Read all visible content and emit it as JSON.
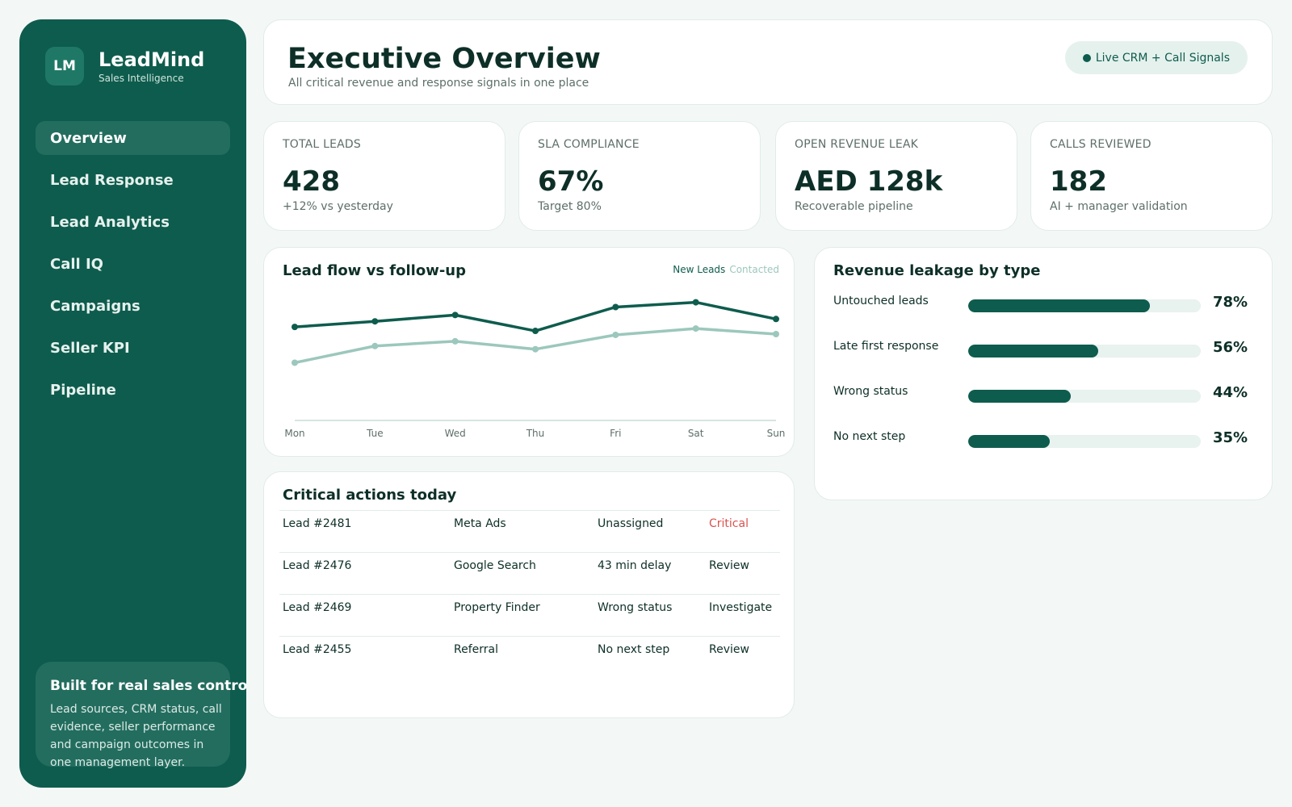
{
  "brand": {
    "logo": "LM",
    "name": "LeadMind",
    "subtitle": "Sales Intelligence"
  },
  "nav": [
    {
      "label": "Overview",
      "active": true
    },
    {
      "label": "Lead Response"
    },
    {
      "label": "Lead Analytics"
    },
    {
      "label": "Call IQ"
    },
    {
      "label": "Campaigns"
    },
    {
      "label": "Seller KPI"
    },
    {
      "label": "Pipeline"
    }
  ],
  "side_card": {
    "title": "Built for real sales control",
    "body": "Lead sources, CRM status, call evidence, seller performance and campaign outcomes in one management layer."
  },
  "header": {
    "title": "Executive Overview",
    "subtitle": "All critical revenue and response signals in one place",
    "live_label": "Live CRM + Call Signals"
  },
  "kpis": [
    {
      "label": "TOTAL LEADS",
      "value": "428",
      "sub": "+12% vs yesterday"
    },
    {
      "label": "SLA COMPLIANCE",
      "value": "67%",
      "sub": "Target 80%"
    },
    {
      "label": "OPEN REVENUE LEAK",
      "value": "AED 128k",
      "sub": "Recoverable pipeline"
    },
    {
      "label": "CALLS REVIEWED",
      "value": "182",
      "sub": "AI + manager validation"
    }
  ],
  "lead_chart": {
    "title": "Lead flow vs follow-up",
    "legend_new": "New Leads",
    "legend_contacted": "Contacted"
  },
  "chart_data": {
    "type": "line",
    "categories": [
      "Mon",
      "Tue",
      "Wed",
      "Thu",
      "Fri",
      "Sat",
      "Sun"
    ],
    "series": [
      {
        "name": "New Leads",
        "values": [
          58,
          65,
          73,
          53,
          83,
          89,
          68
        ],
        "color": "#0e5c4d"
      },
      {
        "name": "Contacted",
        "values": [
          13,
          34,
          40,
          30,
          48,
          56,
          49
        ],
        "color": "#9cc7bc"
      }
    ],
    "ylim": [
      -86,
      117
    ],
    "grid": false,
    "legend": "top-right"
  },
  "leakage": {
    "title": "Revenue leakage by type",
    "items": [
      {
        "label": "Untouched leads",
        "value": 78,
        "pct": "78%"
      },
      {
        "label": "Late first response",
        "value": 56,
        "pct": "56%"
      },
      {
        "label": "Wrong status",
        "value": 44,
        "pct": "44%"
      },
      {
        "label": "No next step",
        "value": 35,
        "pct": "35%"
      }
    ]
  },
  "actions": {
    "title": "Critical actions today",
    "rows": [
      {
        "lead": "Lead #2481",
        "source": "Meta Ads",
        "issue": "Unassigned",
        "status": "Critical"
      },
      {
        "lead": "Lead #2476",
        "source": "Google Search",
        "issue": "43 min delay",
        "status": "Review"
      },
      {
        "lead": "Lead #2469",
        "source": "Property Finder",
        "issue": "Wrong status",
        "status": "Investigate"
      },
      {
        "lead": "Lead #2455",
        "source": "Referral",
        "issue": "No next step",
        "status": "Review"
      }
    ]
  },
  "colors": {
    "brand": "#0e5c4d",
    "accent_light": "#9cc7bc",
    "critical": "#d9534f",
    "background": "#f3f8f6"
  },
  "icons": {
    "live_indicator": "status-dot-icon"
  }
}
